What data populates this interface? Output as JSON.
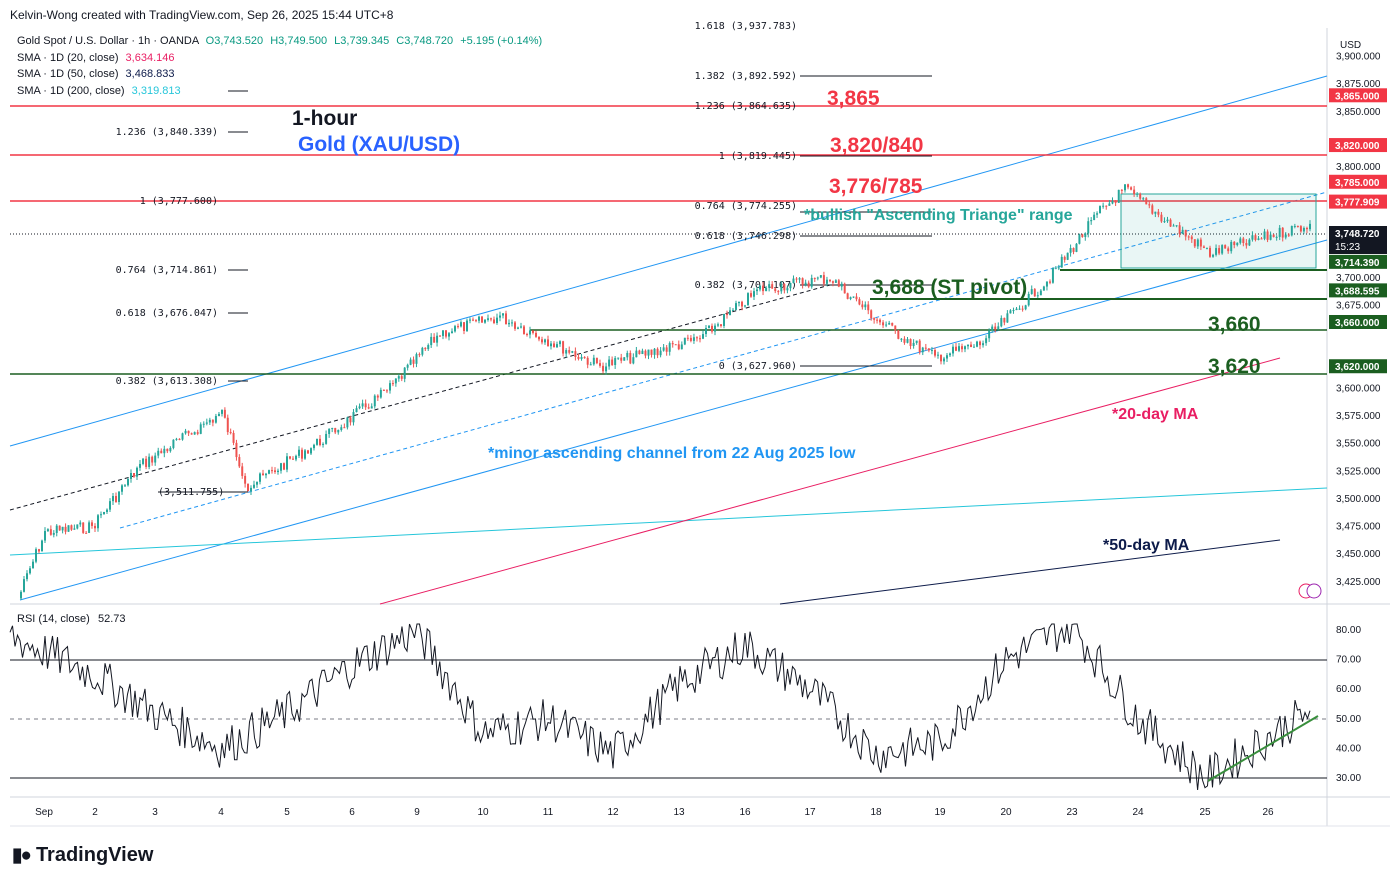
{
  "header": {
    "credit": "Kelvin-Wong created with TradingView.com, Sep 26, 2025 15:44 UTC+8"
  },
  "legend": {
    "symbol": "Gold Spot / U.S. Dollar · 1h · OANDA",
    "open": "O3,743.520",
    "high": "H3,749.500",
    "low": "L3,739.345",
    "close": "C3,748.720",
    "change": "+5.195 (+0.14%)",
    "sma20_label": "SMA · 1D (20, close)",
    "sma20_value": "3,634.146",
    "sma50_label": "SMA · 1D (50, close)",
    "sma50_value": "3,468.833",
    "sma200_label": "SMA · 1D (200, close)",
    "sma200_value": "3,319.813"
  },
  "titles": {
    "timeframe": "1-hour",
    "instrument": "Gold (XAU/USD)"
  },
  "annotations": {
    "r1": "3,865",
    "r2": "3,820/840",
    "r3": "3,776/785",
    "pivot": "3,688 (ST pivot)",
    "s1": "3,660",
    "s2": "3,620",
    "triangle": "*bullish \"Ascending Triange\" range",
    "channel": "*minor ascending channel from 22 Aug 2025 low",
    "ma20": "*20-day MA",
    "ma50": "*50-day MA"
  },
  "colors": {
    "up": "#26a69a",
    "down": "#ef5350",
    "resistance": "#f23645",
    "support": "#1b5e20",
    "channel": "#2196f3",
    "ma20": "#e91e63",
    "ma50": "#0d1b4a",
    "ma200": "#26c6da",
    "triangle": "#26a69a",
    "rsi": "#131722"
  },
  "price_axis": {
    "currency": "USD",
    "ticks": [
      "3,900.000",
      "3,875.000",
      "3,850.000",
      "3,800.000",
      "3,700.000",
      "3,675.000",
      "3,600.000",
      "3,575.000",
      "3,550.000",
      "3,525.000",
      "3,500.000",
      "3,475.000",
      "3,450.000",
      "3,425.000"
    ],
    "tags": [
      {
        "text": "3,865.000",
        "color": "#f23645"
      },
      {
        "text": "3,820.000",
        "color": "#f23645"
      },
      {
        "text": "3,785.000",
        "color": "#f23645"
      },
      {
        "text": "3,777.909",
        "color": "#f23645"
      },
      {
        "text": "3,714.390",
        "color": "#1b5e20"
      },
      {
        "text": "3,688.595",
        "color": "#1b5e20"
      },
      {
        "text": "3,660.000",
        "color": "#1b5e20"
      },
      {
        "text": "3,620.000",
        "color": "#1b5e20"
      }
    ],
    "last_price": "3,748.720",
    "countdown": "15:23"
  },
  "time_axis": [
    "Sep",
    "2",
    "3",
    "4",
    "5",
    "6",
    "9",
    "10",
    "11",
    "12",
    "13",
    "16",
    "17",
    "18",
    "19",
    "20",
    "23",
    "24",
    "25",
    "26"
  ],
  "fib_left": [
    "1.236 (3,840.339)",
    "1 (3,777.600)",
    "0.764 (3,714.861)",
    "0.618 (3,676.047)",
    "0.382 (3,613.308)",
    "(3,511.755)"
  ],
  "fib_right": [
    "1.618 (3,937.783)",
    "1.382 (3,892.592)",
    "1.236 (3,864.635)",
    "1 (3,819.445)",
    "0.764 (3,774.255)",
    "0.618 (3,746.298)",
    "0.382 (3,701.107)",
    "0 (3,627.960)"
  ],
  "rsi": {
    "label": "RSI (14, close)",
    "value": "52.73",
    "ticks": [
      "80.00",
      "70.00",
      "60.00",
      "50.00",
      "40.00",
      "30.00"
    ]
  },
  "brand": "TradingView",
  "chart_data": {
    "type": "candlestick",
    "symbol": "XAU/USD",
    "timeframe": "1h",
    "ylim": [
      3405,
      3915
    ],
    "close_path": {
      "x": [
        "Aug 29",
        "Sep 1",
        "Sep 2",
        "Sep 3",
        "Sep 4",
        "Sep 4",
        "Sep 5",
        "Sep 8",
        "Sep 9",
        "Sep 10",
        "Sep 11",
        "Sep 12",
        "Sep 15",
        "Sep 16",
        "Sep 17",
        "Sep 18",
        "Sep 18",
        "Sep 19",
        "Sep 22",
        "Sep 23",
        "Sep 24",
        "Sep 25",
        "Sep 26"
      ],
      "y": [
        3410,
        3470,
        3475,
        3530,
        3578,
        3511,
        3552,
        3600,
        3650,
        3665,
        3638,
        3620,
        3645,
        3690,
        3700,
        3660,
        3628,
        3640,
        3700,
        3760,
        3780,
        3722,
        3748.72
      ]
    },
    "levels": {
      "resistance": [
        3865,
        3820,
        3785,
        3777.909
      ],
      "support": [
        3714.39,
        3688.595,
        3660,
        3620
      ]
    },
    "rsi": {
      "x": [
        "Sep 1",
        "Sep 2",
        "Sep 3",
        "Sep 4",
        "Sep 5",
        "Sep 8",
        "Sep 9",
        "Sep 10",
        "Sep 11",
        "Sep 12",
        "Sep 15",
        "Sep 16",
        "Sep 17",
        "Sep 18",
        "Sep 19",
        "Sep 22",
        "Sep 23",
        "Sep 24",
        "Sep 25",
        "Sep 26"
      ],
      "y": [
        78,
        65,
        52,
        40,
        52,
        68,
        80,
        45,
        50,
        38,
        62,
        75,
        60,
        38,
        42,
        70,
        82,
        50,
        30,
        52.73
      ]
    }
  }
}
